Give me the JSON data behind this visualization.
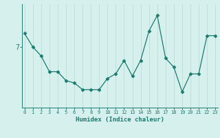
{
  "x": [
    0,
    1,
    2,
    3,
    4,
    5,
    6,
    7,
    8,
    9,
    10,
    11,
    12,
    13,
    14,
    15,
    16,
    17,
    18,
    19,
    20,
    21,
    22,
    23
  ],
  "y": [
    7.15,
    6.85,
    6.65,
    6.3,
    6.3,
    6.1,
    6.05,
    5.9,
    5.9,
    5.9,
    6.15,
    6.25,
    6.55,
    6.2,
    6.55,
    7.2,
    7.55,
    6.6,
    6.4,
    5.85,
    6.25,
    6.25,
    7.1,
    7.1
  ],
  "xlabel": "Humidex (Indice chaleur)",
  "ytick_label": "7",
  "ytick_val": 6.85,
  "line_color": "#1a7a6e",
  "marker": "D",
  "marker_size": 2.5,
  "bg_color": "#d6f0ee",
  "grid_color": "#c0deda",
  "axis_color": "#1a7a6e",
  "xlim": [
    -0.3,
    23.3
  ],
  "ylim": [
    5.5,
    7.8
  ],
  "figsize": [
    3.2,
    2.0
  ],
  "dpi": 100
}
